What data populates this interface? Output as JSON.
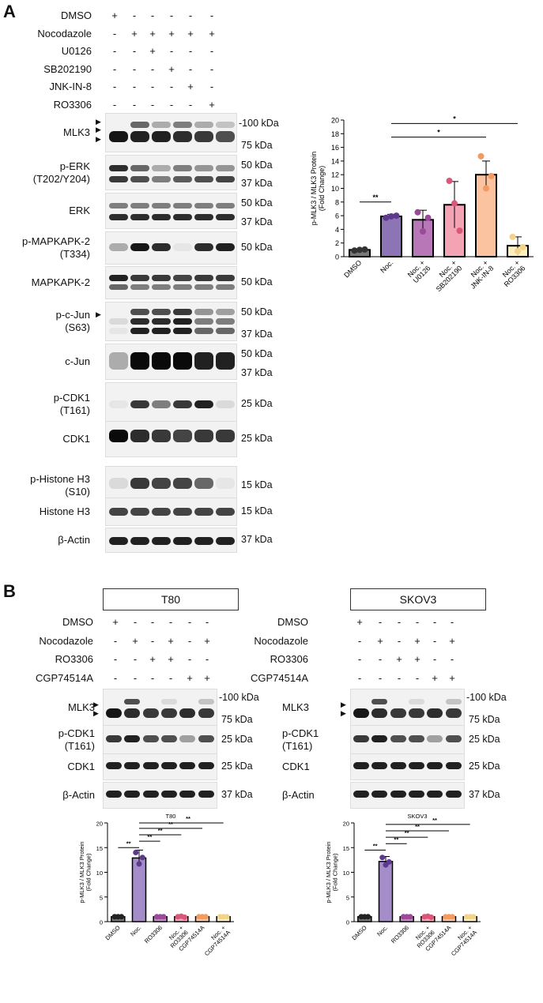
{
  "panelA": {
    "letter": "A",
    "treatments": [
      "DMSO",
      "Nocodazole",
      "U0126",
      "SB202190",
      "JNK-IN-8",
      "RO3306"
    ],
    "signs": [
      [
        "+",
        "-",
        "-",
        "-",
        "-",
        "-"
      ],
      [
        "-",
        "+",
        "+",
        "+",
        "+",
        "+"
      ],
      [
        "-",
        "-",
        "+",
        "-",
        "-",
        "-"
      ],
      [
        "-",
        "-",
        "-",
        "+",
        "-",
        "-"
      ],
      [
        "-",
        "-",
        "-",
        "-",
        "+",
        "-"
      ],
      [
        "-",
        "-",
        "-",
        "-",
        "-",
        "+"
      ]
    ],
    "blots": [
      {
        "label": "MLK3",
        "kda": [
          "-100 kDa",
          "75 kDa"
        ]
      },
      {
        "label": "p-ERK\n(T202/Y204)",
        "kda": [
          "50 kDa",
          "37 kDa"
        ]
      },
      {
        "label": "ERK",
        "kda": [
          "50 kDa",
          "37 kDa"
        ]
      },
      {
        "label": "p-MAPKAPK-2\n(T334)",
        "kda": [
          "50 kDa"
        ]
      },
      {
        "label": "MAPKAPK-2",
        "kda": [
          "50 kDa"
        ]
      },
      {
        "label": "p-c-Jun\n(S63)",
        "kda": [
          "50 kDa",
          "37 kDa"
        ]
      },
      {
        "label": "c-Jun",
        "kda": [
          "50 kDa",
          "37 kDa"
        ]
      },
      {
        "label": "p-CDK1\n(T161)",
        "kda": [
          "25 kDa"
        ]
      },
      {
        "label": "CDK1",
        "kda": [
          "25 kDa"
        ]
      },
      {
        "label": "p-Histone H3\n(S10)",
        "kda": [
          "15 kDa"
        ]
      },
      {
        "label": "Histone H3",
        "kda": [
          "15 kDa"
        ]
      },
      {
        "label": "β-Actin",
        "kda": [
          "37 kDa"
        ]
      }
    ]
  },
  "panelB": {
    "letter": "B",
    "cells": [
      "T80",
      "SKOV3"
    ],
    "treatments": [
      "DMSO",
      "Nocodazole",
      "RO3306",
      "CGP74514A"
    ],
    "signs": [
      [
        "+",
        "-",
        "-",
        "-",
        "-",
        "-"
      ],
      [
        "-",
        "+",
        "-",
        "+",
        "-",
        "+"
      ],
      [
        "-",
        "-",
        "+",
        "+",
        "-",
        "-"
      ],
      [
        "-",
        "-",
        "-",
        "-",
        "+",
        "+"
      ]
    ],
    "blots": [
      {
        "label": "MLK3",
        "kda": [
          "-100 kDa",
          "75 kDa"
        ]
      },
      {
        "label": "p-CDK1\n(T161)",
        "kda": [
          "25 kDa"
        ]
      },
      {
        "label": "CDK1",
        "kda": [
          "25 kDa"
        ]
      },
      {
        "label": "β-Actin",
        "kda": [
          "37 kDa"
        ]
      }
    ]
  },
  "chart_data": [
    {
      "type": "bar",
      "title": "",
      "ylabel": "p-MLK3 / MLK3 Protein\n(Fold Change)",
      "categories": [
        "DMSO",
        "Noc.",
        "Noc. +\nU0126",
        "Noc. +\nSB202190",
        "Noc. +\nJNK-IN-8",
        "Noc. +\nRO3306"
      ],
      "values": [
        1.0,
        5.9,
        5.4,
        7.6,
        12.0,
        1.6
      ],
      "errors": [
        0.1,
        0.3,
        1.4,
        3.4,
        2.0,
        1.3
      ],
      "points": [
        [
          0.9,
          1.0,
          1.05
        ],
        [
          5.7,
          5.9,
          6.0
        ],
        [
          6.5,
          3.7,
          5.7
        ],
        [
          11.1,
          7.8,
          3.8
        ],
        [
          14.7,
          10.0,
          11.8
        ],
        [
          2.9,
          0.8,
          1.4
        ]
      ],
      "colors": [
        "#777777",
        "#8c74b5",
        "#b878b7",
        "#f3a3b3",
        "#fbc39f",
        "#fdeebd"
      ],
      "point_colors": [
        "#333333",
        "#5e3a8f",
        "#9b4a9a",
        "#d9577a",
        "#f39a60",
        "#f2d488"
      ],
      "ylim": [
        0,
        20
      ],
      "yticks": [
        0,
        2,
        4,
        6,
        8,
        10,
        12,
        14,
        16,
        18,
        20
      ],
      "significance": [
        {
          "label": "**"
        },
        {
          "label": "*"
        },
        {
          "label": "*"
        }
      ]
    },
    {
      "type": "bar",
      "title": "T80",
      "ylabel": "p-MLK3 / MLK3 Protein\n(Fold Change)",
      "categories": [
        "DMSO",
        "Noc.",
        "RO3306",
        "Noc. +\nRO3306",
        "CGP74514A",
        "Noc. +\nCGP74514A"
      ],
      "values": [
        1.0,
        12.9,
        1.0,
        1.0,
        1.0,
        1.0
      ],
      "errors": [
        0.05,
        1.6,
        0.05,
        0.1,
        0.05,
        0.05
      ],
      "points": [
        [
          1.0,
          1.0,
          1.0
        ],
        [
          14.0,
          11.7,
          13.0
        ],
        [
          1.0,
          1.0,
          1.0
        ],
        [
          1.0,
          1.1,
          0.9
        ],
        [
          1.0,
          1.0,
          1.0
        ],
        [
          1.0,
          1.0,
          1.0
        ]
      ],
      "colors": [
        "#777777",
        "#a58dc9",
        "#c78cc7",
        "#f5a9b8",
        "#fcc7a5",
        "#fdeec4"
      ],
      "point_colors": [
        "#222222",
        "#5e3a8f",
        "#9b4a9a",
        "#d9577a",
        "#f39a60",
        "#f2d488"
      ],
      "ylim": [
        0,
        20
      ],
      "yticks": [
        0,
        5,
        10,
        15,
        20
      ],
      "significance": [
        {
          "label": "**"
        },
        {
          "label": "**"
        },
        {
          "label": "**"
        },
        {
          "label": "**"
        },
        {
          "label": "**"
        }
      ]
    },
    {
      "type": "bar",
      "title": "SKOV3",
      "ylabel": "p-MLK3 / MLK3 Protein\n(Fold Change)",
      "categories": [
        "DMSO",
        "Noc.",
        "RO3306",
        "Noc. +\nRO3306",
        "CGP74514A",
        "Noc. +\nCGP74514A"
      ],
      "values": [
        1.0,
        12.2,
        1.0,
        1.0,
        1.0,
        1.0
      ],
      "errors": [
        0.05,
        1.0,
        0.05,
        0.1,
        0.05,
        0.05
      ],
      "points": [
        [
          1.0,
          1.0,
          1.0
        ],
        [
          13.0,
          11.5,
          12.1
        ],
        [
          1.0,
          1.0,
          1.0
        ],
        [
          1.0,
          1.1,
          0.9
        ],
        [
          1.0,
          1.0,
          1.0
        ],
        [
          1.0,
          1.0,
          1.0
        ]
      ],
      "colors": [
        "#777777",
        "#a58dc9",
        "#c78cc7",
        "#f5a9b8",
        "#fcc7a5",
        "#fdeec4"
      ],
      "point_colors": [
        "#222222",
        "#5e3a8f",
        "#9b4a9a",
        "#d9577a",
        "#f39a60",
        "#f2d488"
      ],
      "ylim": [
        0,
        20
      ],
      "yticks": [
        0,
        5,
        10,
        15,
        20
      ],
      "significance": [
        {
          "label": "**"
        },
        {
          "label": "**"
        },
        {
          "label": "**"
        },
        {
          "label": "**"
        },
        {
          "label": "**"
        }
      ]
    }
  ]
}
